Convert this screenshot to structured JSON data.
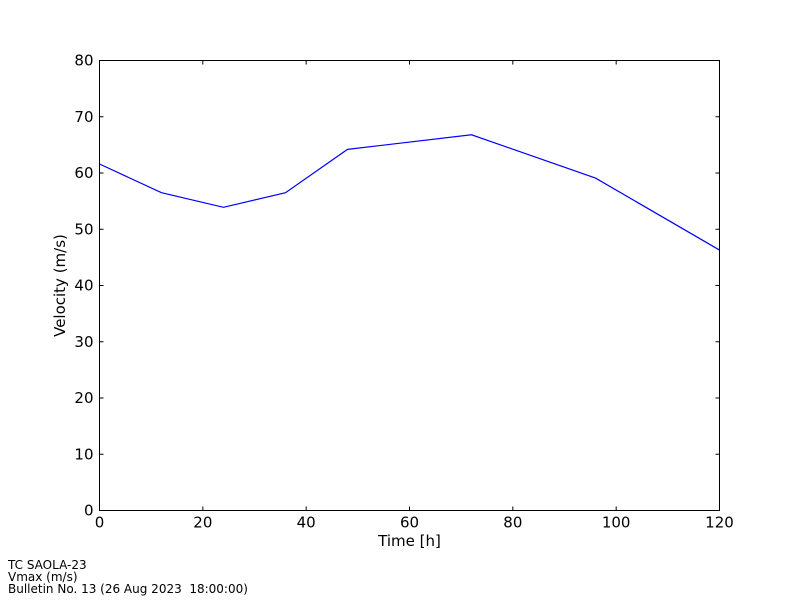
{
  "chart_data": {
    "type": "line",
    "title": "",
    "xlabel": "Time [h]",
    "ylabel": "Velocity (m/s)",
    "xlim": [
      0,
      120
    ],
    "ylim": [
      0,
      80
    ],
    "xticks": [
      0,
      20,
      40,
      60,
      80,
      100,
      120
    ],
    "yticks": [
      0,
      10,
      20,
      30,
      40,
      50,
      60,
      70,
      80
    ],
    "grid": false,
    "series": [
      {
        "color": "#0000ff",
        "x": [
          0,
          12,
          24,
          36,
          48,
          72,
          96,
          120
        ],
        "y": [
          61.6,
          56.5,
          53.9,
          56.5,
          64.2,
          66.8,
          59.1,
          46.3
        ]
      }
    ]
  },
  "footer": {
    "line1": "TC SAOLA-23",
    "line2": "Vmax (m/s)",
    "line3": "Bulletin No. 13 (26 Aug 2023  18:00:00)"
  }
}
